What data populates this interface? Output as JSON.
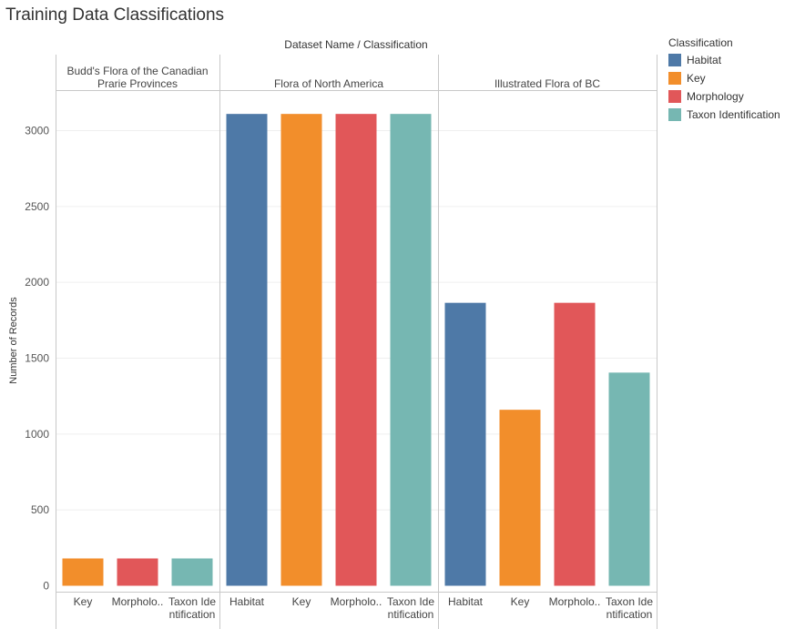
{
  "title": "Training Data Classifications",
  "chart_data": {
    "type": "bar",
    "title": "Training Data Classifications",
    "column_header": "Dataset Name  /  Classification",
    "ylabel": "Number of Records",
    "ylim": [
      0,
      3300
    ],
    "yticks": [
      0,
      500,
      1000,
      1500,
      2000,
      2500,
      3000
    ],
    "grid": true,
    "legend": {
      "title": "Classification",
      "placement": "right",
      "items": [
        {
          "label": "Habitat",
          "color": "#4e79a7"
        },
        {
          "label": "Key",
          "color": "#f28e2b"
        },
        {
          "label": "Morphology",
          "color": "#e15759"
        },
        {
          "label": "Taxon Identification",
          "color": "#76b7b2"
        }
      ]
    },
    "groups": [
      {
        "name": "Budd's Flora of the Canadian Prarie Provinces",
        "name_lines": [
          "Budd's Flora of the Canadian",
          "Prarie Provinces"
        ],
        "bars": [
          {
            "classification": "Key",
            "label_lines": [
              "Key"
            ],
            "value": 180
          },
          {
            "classification": "Morphology",
            "label_lines": [
              "Morpholo.."
            ],
            "value": 180
          },
          {
            "classification": "Taxon Identification",
            "label_lines": [
              "Taxon Ide",
              "ntification"
            ],
            "value": 180
          }
        ]
      },
      {
        "name": "Flora of North America",
        "name_lines": [
          "Flora of North America"
        ],
        "bars": [
          {
            "classification": "Habitat",
            "label_lines": [
              "Habitat"
            ],
            "value": 3110
          },
          {
            "classification": "Key",
            "label_lines": [
              "Key"
            ],
            "value": 3110
          },
          {
            "classification": "Morphology",
            "label_lines": [
              "Morpholo.."
            ],
            "value": 3110
          },
          {
            "classification": "Taxon Identification",
            "label_lines": [
              "Taxon Ide",
              "ntification"
            ],
            "value": 3110
          }
        ]
      },
      {
        "name": "Illustrated Flora of BC",
        "name_lines": [
          "Illustrated Flora of BC"
        ],
        "bars": [
          {
            "classification": "Habitat",
            "label_lines": [
              "Habitat"
            ],
            "value": 1865
          },
          {
            "classification": "Key",
            "label_lines": [
              "Key"
            ],
            "value": 1160
          },
          {
            "classification": "Morphology",
            "label_lines": [
              "Morpholo.."
            ],
            "value": 1865
          },
          {
            "classification": "Taxon Identification",
            "label_lines": [
              "Taxon Ide",
              "ntification"
            ],
            "value": 1405
          }
        ]
      }
    ]
  }
}
